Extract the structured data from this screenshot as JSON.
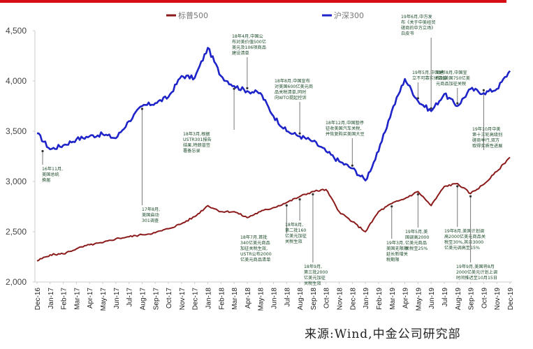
{
  "source": "来源:Wind,中金公司研究部",
  "colors": {
    "sp500": "#8b1a1a",
    "csi300": "#1f24c8",
    "topbar": "#d40e14",
    "annotation_text": "#1e4d2b",
    "leader": "#777777"
  },
  "chart_data": {
    "type": "line",
    "title": "",
    "xlabel": "",
    "ylabel": "",
    "ylim": [
      2000,
      4500
    ],
    "yticks": [
      "2,000",
      "2,500",
      "3,000",
      "3,500",
      "4,000",
      "4,500"
    ],
    "grid": false,
    "legend_position": "top",
    "legend": [
      "标普500",
      "沪深300"
    ],
    "categories": [
      "Dec-16",
      "Jan-17",
      "Feb-17",
      "Mar-17",
      "Apr-17",
      "May-17",
      "Jun-17",
      "Jul-17",
      "Aug-17",
      "Sep-17",
      "Oct-17",
      "Nov-17",
      "Dec-17",
      "Jan-18",
      "Feb-18",
      "Mar-18",
      "Apr-18",
      "May-18",
      "Jun-18",
      "Jul-18",
      "Aug-18",
      "Sep-18",
      "Oct-18",
      "Nov-18",
      "Dec-18",
      "Jan-19",
      "Feb-19",
      "Mar-19",
      "Apr-19",
      "May-19",
      "Jun-19",
      "Jul-19",
      "Aug-19",
      "Sep-19",
      "Oct-19",
      "Nov-19",
      "Dec-19"
    ],
    "series": [
      {
        "name": "标普500",
        "values": [
          2210,
          2270,
          2280,
          2330,
          2370,
          2390,
          2430,
          2450,
          2470,
          2490,
          2530,
          2580,
          2650,
          2760,
          2700,
          2700,
          2640,
          2700,
          2740,
          2790,
          2850,
          2900,
          2920,
          2700,
          2600,
          2500,
          2700,
          2780,
          2830,
          2900,
          2760,
          2950,
          2980,
          2880,
          2970,
          3100,
          3240
        ]
      },
      {
        "name": "沪深300",
        "values": [
          3480,
          3320,
          3360,
          3420,
          3450,
          3470,
          3430,
          3600,
          3750,
          3780,
          3840,
          4050,
          4030,
          4330,
          4050,
          3950,
          3900,
          3880,
          3650,
          3500,
          3450,
          3400,
          3300,
          3200,
          3130,
          3010,
          3300,
          3700,
          4020,
          3800,
          3700,
          3870,
          3750,
          3920,
          3880,
          3920,
          4100
        ]
      }
    ],
    "annotations": [
      {
        "series": "沪深300",
        "date": "Nov-16",
        "text": [
          "16年11月,",
          "美国总统",
          "换届"
        ]
      },
      {
        "series": "沪深300",
        "date": "Aug-17",
        "text": [
          "17年8月,",
          "美国启动",
          "301调查"
        ]
      },
      {
        "series": "沪深300",
        "date": "Mar-18",
        "text": [
          "18年3月,根据",
          "USTR301报告",
          "结果,特朗普签",
          "署备忘录"
        ]
      },
      {
        "series": "沪深300",
        "date": "Apr-18",
        "text": [
          "18年4月,中国公",
          "布对美价值500亿",
          "美元及106项商品",
          "建设清单"
        ]
      },
      {
        "series": "沪深300",
        "date": "Aug-18",
        "text": [
          "18年8月,中国宣布",
          "对美国600亿美元商",
          "品关税清单,同时",
          "向WTO提起控诉"
        ]
      },
      {
        "series": "沪深300",
        "date": "Dec-18",
        "text": [
          "18年12月,中国暂停",
          "征收美国汽车关税,",
          "并恢复购买美国大豆"
        ]
      },
      {
        "series": "沪深300",
        "date": "May-19",
        "text": [
          "19年5月,中国建",
          "立不可靠实体清单"
        ]
      },
      {
        "series": "沪深300",
        "date": "Jun-19",
        "text": [
          "19年6月,中方发",
          "布《关于中美经贸",
          "磋商的中方立场》",
          "白皮书"
        ]
      },
      {
        "series": "沪深300",
        "date": "Aug-19",
        "text": [
          "19年8月,中国宣",
          "布对美国750亿美",
          "元商品加征关税"
        ]
      },
      {
        "series": "沪深300",
        "date": "Oct-19",
        "text": [
          "19年10月中美",
          "第十三轮高级别",
          "磋商举行,双方",
          "取得实质性进展"
        ]
      },
      {
        "series": "标普500",
        "date": "Jul-18",
        "text": [
          "18年7月,首批",
          "340亿美元商品",
          "加征关税生效,",
          "USTR公布2000",
          "亿美元商品清单"
        ]
      },
      {
        "series": "标普500",
        "date": "Aug-18",
        "text": [
          "18年8月,",
          "第二批160",
          "亿美元加征",
          "关税生效"
        ]
      },
      {
        "series": "标普500",
        "date": "Sep-18",
        "text": [
          "18年9月,",
          "第三批2000",
          "亿美元加征",
          "关税生效"
        ]
      },
      {
        "series": "标普500",
        "date": "Mar-19",
        "text": [
          "19年3月,",
          "美国无限期",
          "延长新增关",
          "税期限"
        ]
      },
      {
        "series": "标普500",
        "date": "May-19",
        "text": [
          "19年5月,美",
          "国调高2000",
          "亿美元商品",
          "关税至25%"
        ]
      },
      {
        "series": "标普500",
        "date": "Aug-19",
        "text": [
          "19年8月,美国计划调",
          "高2000亿美元商品关",
          "税至30%,其余3000",
          "亿美元调高至15%"
        ]
      },
      {
        "series": "标普500",
        "date": "Sep-19",
        "text": [
          "19年9月,美国将8月",
          "2000亿美元计划上调",
          "时间推迟至10月15日"
        ]
      }
    ]
  }
}
